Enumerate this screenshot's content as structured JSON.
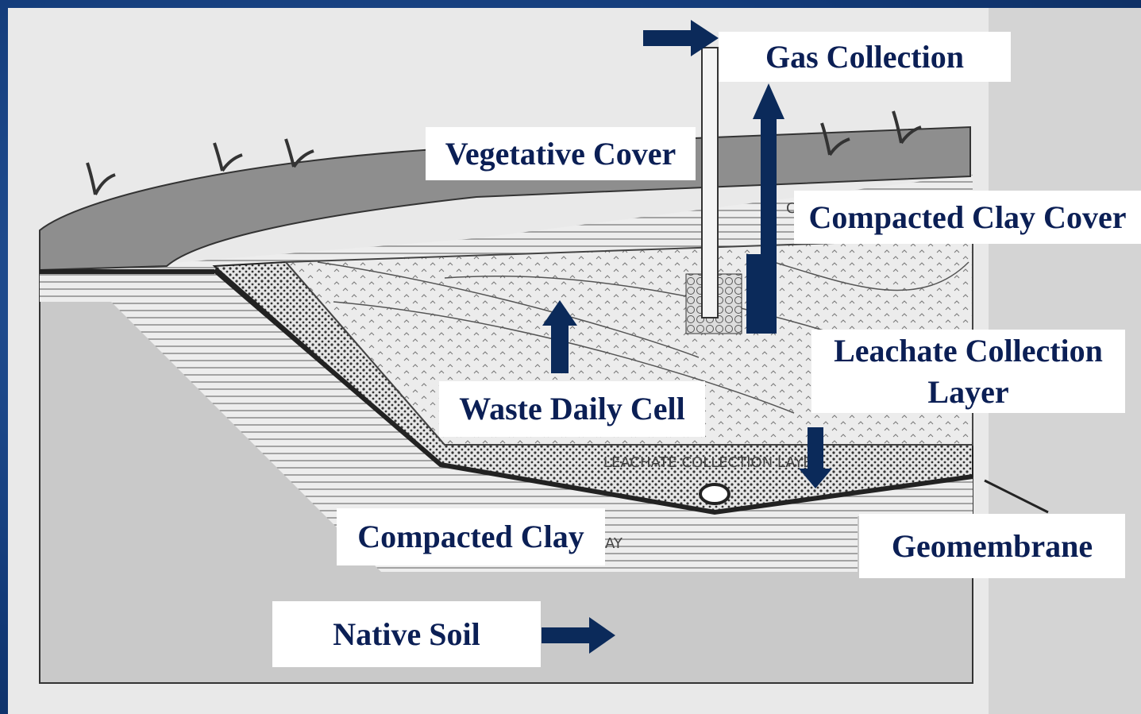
{
  "labels": {
    "gas_collection": "Gas Collection",
    "vegetative_cover": "Vegetative Cover",
    "compacted_clay_cover": "Compacted Clay Cover",
    "waste_daily_cell": "Waste Daily Cell",
    "leachate_collection_layer": [
      "Leachate Collection",
      "Layer"
    ],
    "compacted_clay": "Compacted Clay",
    "geomembrane": "Geomembrane",
    "native_soil": "Native Soil"
  },
  "drawing_text": {
    "leachate": "LEACHATE COLLECTION LAYER",
    "clay": "AY",
    "cover": "C"
  }
}
